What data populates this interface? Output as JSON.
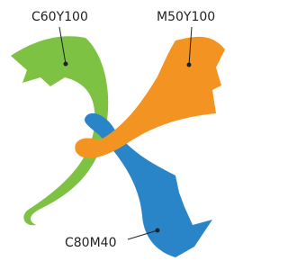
{
  "shapes": [
    {
      "label": "C60Y100"
    },
    {
      "label": "M50Y100"
    },
    {
      "label": "C80M40"
    }
  ]
}
